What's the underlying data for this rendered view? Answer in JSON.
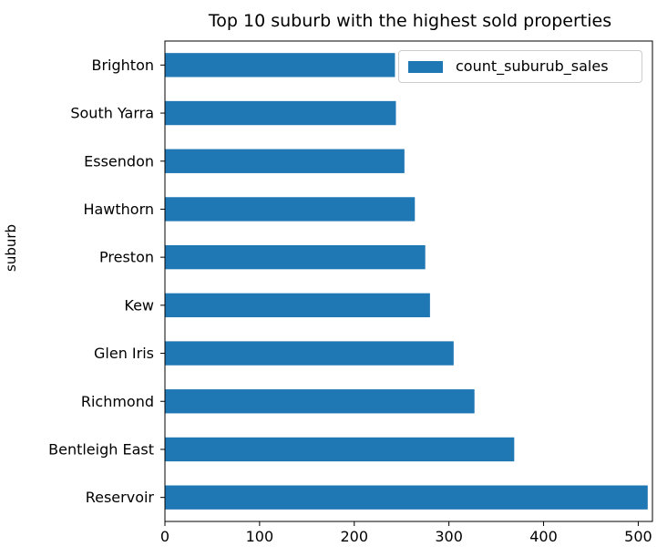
{
  "chart_data": {
    "type": "bar",
    "orientation": "horizontal",
    "title": "Top 10 suburb with the highest sold properties",
    "xlabel": "",
    "ylabel": "suburb",
    "categories": [
      "Reservoir",
      "Bentleigh East",
      "Richmond",
      "Glen Iris",
      "Kew",
      "Preston",
      "Hawthorn",
      "Essendon",
      "South Yarra",
      "Brighton"
    ],
    "series": [
      {
        "name": "count_suburub_sales",
        "values": [
          510,
          369,
          327,
          305,
          280,
          275,
          264,
          253,
          244,
          243
        ],
        "color": "#1f77b4"
      }
    ],
    "xlim": [
      0,
      515
    ],
    "xticks": [
      0,
      100,
      200,
      300,
      400,
      500
    ],
    "legend_position": "top-right",
    "grid": false
  }
}
